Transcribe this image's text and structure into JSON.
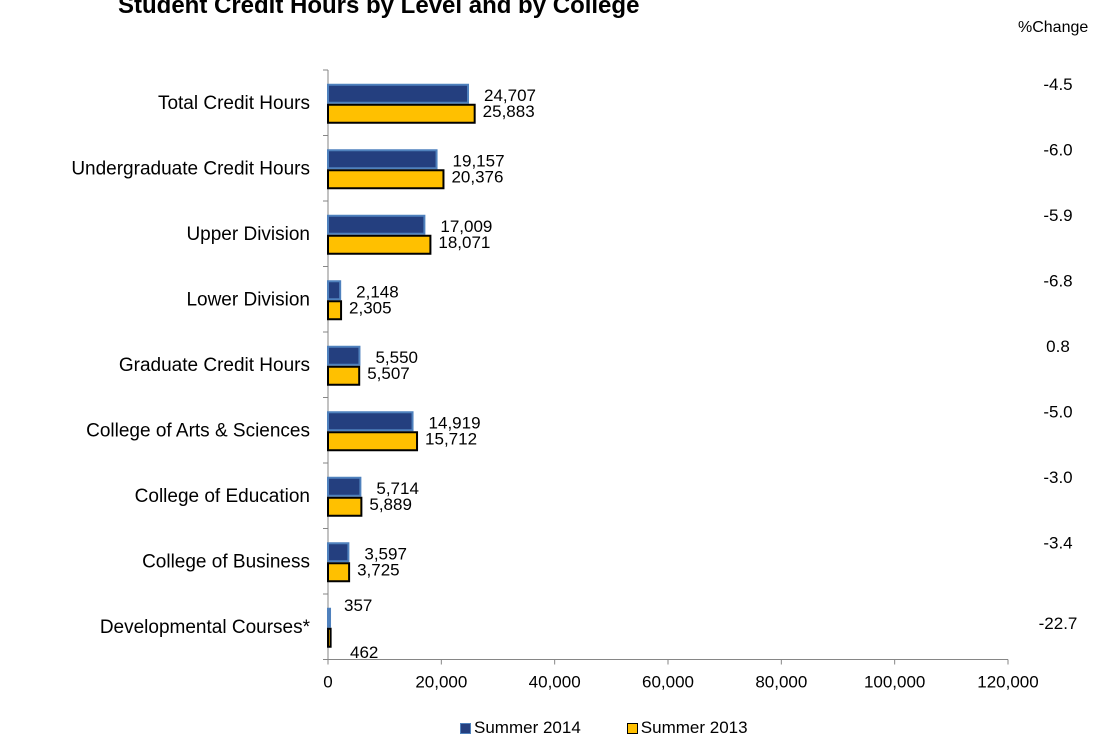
{
  "chart_data": {
    "type": "bar",
    "orientation": "horizontal",
    "title": "Student Credit Hours by Level and by College",
    "side_column_header": "%Change",
    "categories": [
      "Total Credit Hours",
      "Undergraduate Credit Hours",
      "Upper Division",
      "Lower Division",
      "Graduate Credit Hours",
      "College of Arts & Sciences",
      "College of Education",
      "College of Business",
      "Developmental Courses*"
    ],
    "series": [
      {
        "name": "Summer 2014",
        "color": "#243f7f",
        "stroke": "#4f81bd",
        "values": [
          24707,
          19157,
          17009,
          2148,
          5550,
          14919,
          5714,
          3597,
          357
        ],
        "labels": [
          "24,707",
          "19,157",
          "17,009",
          "2,148",
          "5,550",
          "14,919",
          "5,714",
          "3,597",
          "357"
        ]
      },
      {
        "name": "Summer 2013",
        "color": "#ffc000",
        "stroke": "#000000",
        "values": [
          25883,
          20376,
          18071,
          2305,
          5507,
          15712,
          5889,
          3725,
          462
        ],
        "labels": [
          "25,883",
          "20,376",
          "18,071",
          "2,305",
          "5,507",
          "15,712",
          "5,889",
          "3,725",
          "462"
        ]
      }
    ],
    "pct_change": [
      "-4.5",
      "-6.0",
      "-5.9",
      "-6.8",
      "0.8",
      "-5.0",
      "-3.0",
      "-3.4",
      "-22.7"
    ],
    "xlim": [
      0,
      120000
    ],
    "xticks": [
      0,
      20000,
      40000,
      60000,
      80000,
      100000,
      120000
    ],
    "xtick_labels": [
      "0",
      "20,000",
      "40,000",
      "60,000",
      "80,000",
      "100,000",
      "120,000"
    ],
    "grid": false,
    "legend_position": "bottom"
  }
}
